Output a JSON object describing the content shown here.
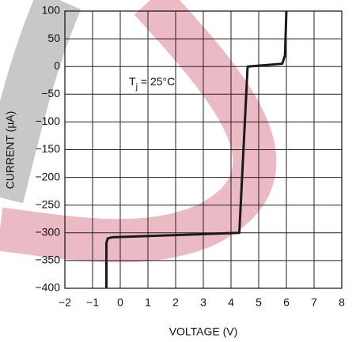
{
  "chart_data": {
    "type": "line",
    "x_label": "VOLTAGE (V)",
    "y_label": "CURRENT (µA)",
    "annotation": [
      "T",
      "j",
      " = 25°C"
    ],
    "x": [
      -0.5,
      -0.5,
      -0.45,
      -0.3,
      4.3,
      4.45,
      4.6,
      5.85,
      5.95,
      6.0
    ],
    "values": [
      -400,
      -318,
      -310,
      -308,
      -300,
      -150,
      0,
      5,
      20,
      100
    ],
    "color": "#1a1a1a",
    "xlim": [
      -2,
      8
    ],
    "xticks": [
      {
        "value": -2,
        "label": "−2"
      },
      {
        "value": -1,
        "label": "−1"
      },
      0,
      1,
      2,
      3,
      4,
      5,
      6,
      7,
      8
    ],
    "ylim": [
      -400,
      100
    ],
    "yticks": [
      {
        "value": -400,
        "label": "−400"
      },
      {
        "value": -350,
        "label": "−350"
      },
      {
        "value": -300,
        "label": "−300"
      },
      {
        "value": -250,
        "label": "−250"
      },
      {
        "value": -200,
        "label": "−200"
      },
      {
        "value": -150,
        "label": "−150"
      },
      {
        "value": -100,
        "label": "−100"
      },
      {
        "value": -50,
        "label": "−50"
      },
      0,
      50,
      100
    ],
    "grid": true
  }
}
